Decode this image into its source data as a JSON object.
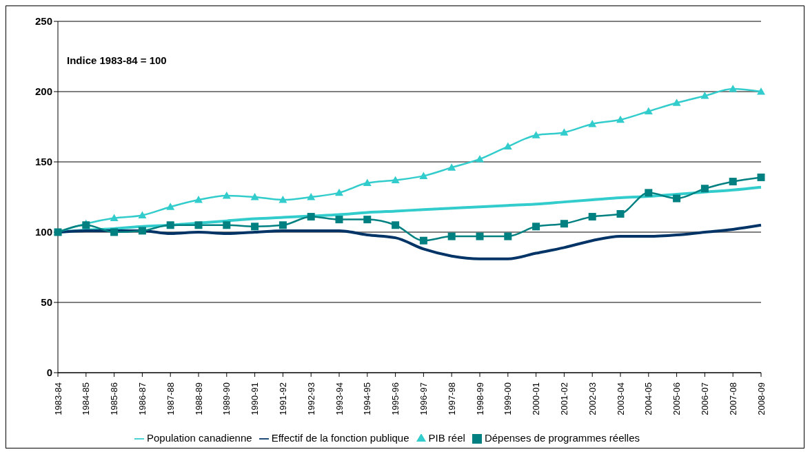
{
  "chart_data": {
    "type": "line",
    "categories": [
      "1983-84",
      "1984-85",
      "1985-86",
      "1986-87",
      "1987-88",
      "1988-89",
      "1989-90",
      "1990-91",
      "1991-92",
      "1992-93",
      "1993-94",
      "1994-95",
      "1995-96",
      "1996-97",
      "1997-98",
      "1998-99",
      "1999-00",
      "2000-01",
      "2001-02",
      "2002-03",
      "2003-04",
      "2004-05",
      "2005-06",
      "2006-07",
      "2007-08",
      "2008-09"
    ],
    "series": [
      {
        "name": "Population canadienne",
        "color": "#33cccc",
        "marker": "none",
        "values": [
          100,
          101.5,
          102.5,
          104,
          105,
          106.5,
          108,
          109.5,
          110.5,
          111.5,
          112.5,
          114,
          115,
          116,
          117,
          118,
          119,
          120,
          121.5,
          123,
          124.5,
          125.5,
          127,
          128.5,
          130,
          132
        ]
      },
      {
        "name": "Effectif de la fonction publique",
        "color": "#003366",
        "marker": "none",
        "values": [
          100,
          101,
          101,
          101,
          99,
          100,
          99,
          100,
          101,
          101,
          101,
          98,
          96,
          88,
          83,
          81,
          81,
          85,
          89,
          94,
          97,
          97,
          98,
          100,
          102,
          105
        ]
      },
      {
        "name": "PIB réel",
        "color": "#33cccc",
        "marker": "triangle",
        "values": [
          100,
          106,
          110,
          112,
          118,
          123,
          126,
          125,
          123,
          125,
          128,
          135,
          137,
          140,
          146,
          152,
          161,
          169,
          171,
          177,
          180,
          186,
          192,
          197,
          202,
          200
        ]
      },
      {
        "name": "Dépenses de programmes réelles",
        "color": "#008080",
        "marker": "square",
        "values": [
          100,
          105,
          100,
          101,
          105,
          105,
          105,
          104,
          105,
          111,
          109,
          109,
          105,
          94,
          97,
          97,
          97,
          104,
          106,
          111,
          113,
          128,
          124,
          131,
          136,
          139
        ]
      }
    ],
    "ylim": [
      0,
      250
    ],
    "yticks": [
      0,
      50,
      100,
      150,
      200,
      250
    ],
    "grid": "y",
    "legend": "bottom",
    "annotations": [
      "Indice 1983-84 = 100"
    ]
  }
}
